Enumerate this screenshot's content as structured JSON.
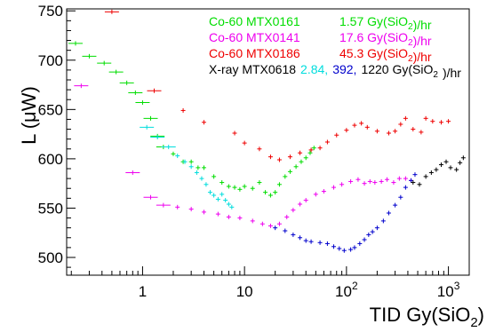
{
  "chart_data": {
    "type": "scatter",
    "title": "",
    "xlabel": {
      "main": "TID Gy(SiO",
      "sub": "2",
      "end": ")"
    },
    "ylabel": {
      "main": "L (",
      "mu": "μ",
      "end": "W)"
    },
    "xscale": "log",
    "xlim": [
      0.18,
      1600
    ],
    "ylim": [
      482,
      752
    ],
    "grid": false,
    "legend_placement": "top-right",
    "x_ticks": [
      {
        "value": 1,
        "base": "1",
        "exp": ""
      },
      {
        "value": 10,
        "base": "10",
        "exp": ""
      },
      {
        "value": 100,
        "base": "10",
        "exp": "2"
      },
      {
        "value": 1000,
        "base": "10",
        "exp": "3"
      }
    ],
    "y_ticks": [
      {
        "value": 500,
        "label": "500"
      },
      {
        "value": 550,
        "label": "550"
      },
      {
        "value": 600,
        "label": "600"
      },
      {
        "value": 650,
        "label": "650"
      },
      {
        "value": 700,
        "label": "700"
      },
      {
        "value": 750,
        "label": "750"
      }
    ],
    "legend": [
      {
        "color": "#00dd00",
        "segments": [
          {
            "text": "Co-60 MTX0161"
          },
          {
            "text": "1.57 Gy(SiO"
          },
          {
            "text": "2",
            "sub": true
          },
          {
            "text": ")/hr"
          }
        ]
      },
      {
        "color": "#ee00ee",
        "segments": [
          {
            "text": "Co-60 MTX0141"
          },
          {
            "text": "17.6 Gy(SiO"
          },
          {
            "text": "2",
            "sub": true
          },
          {
            "text": ")/hr"
          }
        ]
      },
      {
        "color": "#ee0000",
        "segments": [
          {
            "text": "Co-60 MTX0186"
          },
          {
            "text": "45.3 Gy(SiO"
          },
          {
            "text": "2",
            "sub": true
          },
          {
            "text": ")/hr"
          }
        ]
      },
      {
        "color": "#000000",
        "segments": [
          {
            "text": "X-ray  MTX0618"
          },
          {
            "text": "2.84,",
            "color": "#00dddd"
          },
          {
            "text": "392,",
            "color": "#0000cc"
          },
          {
            "text": "1220 Gy(SiO"
          },
          {
            "text": "2",
            "sub": true
          },
          {
            "text": ")/hr"
          }
        ]
      }
    ],
    "series": [
      {
        "name": "Co-60 MTX0186 45.3 Gy(SiO2)/hr",
        "color": "#ee0000",
        "points": [
          [
            0.5,
            749
          ],
          [
            1.3,
            669
          ],
          [
            2.5,
            649
          ],
          [
            4,
            637
          ],
          [
            8,
            626
          ],
          [
            10,
            616
          ],
          [
            14,
            610
          ],
          [
            18,
            602
          ],
          [
            22,
            599
          ],
          [
            28,
            602
          ],
          [
            35,
            606
          ],
          [
            45,
            609
          ],
          [
            55,
            611
          ],
          [
            65,
            617
          ],
          [
            80,
            624
          ],
          [
            100,
            629
          ],
          [
            120,
            634
          ],
          [
            140,
            636
          ],
          [
            160,
            632
          ],
          [
            200,
            628
          ],
          [
            260,
            626
          ],
          [
            300,
            628
          ],
          [
            340,
            635
          ],
          [
            380,
            641
          ],
          [
            450,
            630
          ],
          [
            540,
            627
          ],
          [
            600,
            641
          ],
          [
            700,
            638
          ],
          [
            850,
            637
          ],
          [
            1000,
            638
          ]
        ]
      },
      {
        "name": "Co-60 MTX0161 1.57 Gy(SiO2)/hr",
        "color": "#00dd00",
        "points": [
          [
            0.22,
            717
          ],
          [
            0.3,
            704
          ],
          [
            0.42,
            697
          ],
          [
            0.55,
            688
          ],
          [
            0.7,
            677
          ],
          [
            0.85,
            667
          ],
          [
            1,
            657
          ],
          [
            1.2,
            641
          ],
          [
            1.4,
            623
          ],
          [
            1.6,
            612
          ],
          [
            2,
            605
          ],
          [
            2.5,
            597
          ],
          [
            3,
            597
          ],
          [
            3.5,
            591
          ],
          [
            4,
            591
          ],
          [
            5,
            582
          ],
          [
            6,
            576
          ],
          [
            7,
            572
          ],
          [
            8,
            571
          ],
          [
            9,
            569
          ],
          [
            10,
            572
          ],
          [
            12,
            570
          ],
          [
            14,
            576
          ],
          [
            16,
            566
          ],
          [
            18,
            563
          ],
          [
            20,
            566
          ],
          [
            22,
            574
          ],
          [
            25,
            582
          ],
          [
            28,
            587
          ],
          [
            32,
            592
          ],
          [
            36,
            597
          ],
          [
            40,
            601
          ],
          [
            44,
            606
          ],
          [
            48,
            611
          ]
        ]
      },
      {
        "name": "Co-60 MTX0141 17.6 Gy(SiO2)/hr",
        "color": "#ee00ee",
        "points": [
          [
            0.25,
            674
          ],
          [
            0.8,
            586
          ],
          [
            1.2,
            561
          ],
          [
            1.6,
            553
          ],
          [
            2.2,
            551
          ],
          [
            3,
            549
          ],
          [
            4,
            546
          ],
          [
            5.5,
            544
          ],
          [
            7,
            541
          ],
          [
            9,
            540
          ],
          [
            12,
            537
          ],
          [
            15,
            534
          ],
          [
            18,
            532
          ],
          [
            22,
            534
          ],
          [
            26,
            541
          ],
          [
            30,
            548
          ],
          [
            35,
            554
          ],
          [
            40,
            558
          ],
          [
            50,
            564
          ],
          [
            60,
            567
          ],
          [
            75,
            571
          ],
          [
            90,
            574
          ],
          [
            110,
            577
          ],
          [
            130,
            579
          ],
          [
            150,
            575
          ],
          [
            170,
            577
          ],
          [
            190,
            576
          ],
          [
            220,
            577
          ],
          [
            250,
            579
          ],
          [
            290,
            576
          ],
          [
            330,
            580
          ],
          [
            380,
            580
          ],
          [
            430,
            578
          ]
        ]
      },
      {
        "name": "X-ray MTX0618 2.84 Gy(SiO2)/hr",
        "color": "#00dddd",
        "points": [
          [
            1.1,
            632
          ],
          [
            1.4,
            622
          ],
          [
            1.8,
            612
          ],
          [
            2.2,
            603
          ],
          [
            2.6,
            597
          ],
          [
            3,
            592
          ],
          [
            3.4,
            586
          ],
          [
            3.8,
            580
          ],
          [
            4.2,
            574
          ],
          [
            4.6,
            566
          ],
          [
            5,
            563
          ],
          [
            5.5,
            559
          ],
          [
            6,
            564
          ],
          [
            6.5,
            558
          ],
          [
            7,
            554
          ],
          [
            7.5,
            551
          ]
        ]
      },
      {
        "name": "X-ray MTX0618 392 Gy(SiO2)/hr",
        "color": "#0000cc",
        "points": [
          [
            20,
            530
          ],
          [
            25,
            527
          ],
          [
            30,
            523
          ],
          [
            35,
            520
          ],
          [
            40,
            517
          ],
          [
            45,
            516
          ],
          [
            55,
            515
          ],
          [
            65,
            514
          ],
          [
            75,
            511
          ],
          [
            85,
            509
          ],
          [
            95,
            507
          ],
          [
            110,
            508
          ],
          [
            120,
            510
          ],
          [
            135,
            514
          ],
          [
            150,
            518
          ],
          [
            165,
            523
          ],
          [
            180,
            526
          ],
          [
            200,
            530
          ],
          [
            230,
            537
          ],
          [
            260,
            545
          ],
          [
            300,
            553
          ],
          [
            340,
            561
          ],
          [
            380,
            571
          ],
          [
            430,
            578
          ],
          [
            470,
            584
          ]
        ]
      },
      {
        "name": "X-ray MTX0618 1220 Gy(SiO2)/hr",
        "color": "#000000",
        "points": [
          [
            450,
            576
          ],
          [
            520,
            574
          ],
          [
            600,
            582
          ],
          [
            680,
            586
          ],
          [
            760,
            589
          ],
          [
            850,
            594
          ],
          [
            950,
            597
          ],
          [
            1050,
            591
          ],
          [
            1200,
            589
          ],
          [
            1300,
            596
          ],
          [
            1400,
            601
          ]
        ]
      }
    ]
  }
}
